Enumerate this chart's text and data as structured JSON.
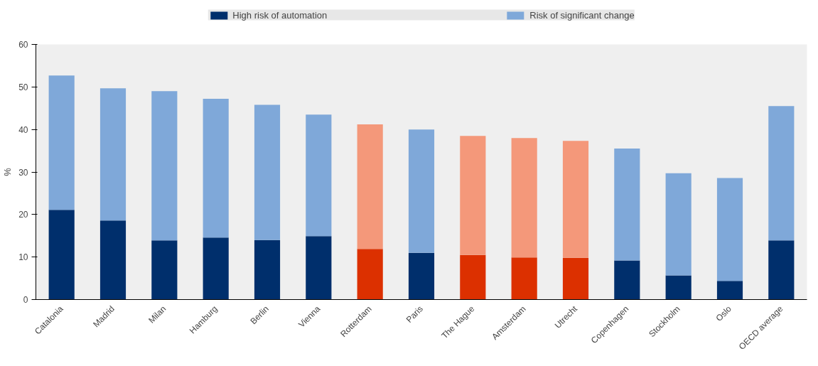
{
  "chart_data": {
    "type": "bar",
    "stacked": true,
    "ylabel": "%",
    "categories": [
      "Catalonia",
      "Madrid",
      "Milan",
      "Hamburg",
      "Berlin",
      "Vienna",
      "Rotterdam",
      "Paris",
      "The Hague",
      "Amsterdam",
      "Utrecht",
      "Copenhagen",
      "Stockholm",
      "Oslo",
      "OECD average"
    ],
    "series": [
      {
        "name": "High risk of automation",
        "color": "#002f6c",
        "colors": [
          "#002f6c",
          "#002f6c",
          "#002f6c",
          "#002f6c",
          "#002f6c",
          "#002f6c",
          "#dc3000",
          "#002f6c",
          "#dc3000",
          "#dc3000",
          "#dc3000",
          "#002f6c",
          "#002f6c",
          "#002f6c",
          "#002f6c"
        ],
        "values": [
          21.1,
          18.6,
          13.9,
          14.6,
          14.0,
          14.9,
          11.9,
          11.0,
          10.5,
          9.9,
          9.8,
          9.2,
          5.7,
          4.4,
          13.9
        ]
      },
      {
        "name": "Risk of significant change",
        "color": "#7fa8d9",
        "colors": [
          "#7fa8d9",
          "#7fa8d9",
          "#7fa8d9",
          "#7fa8d9",
          "#7fa8d9",
          "#7fa8d9",
          "#f4987a",
          "#7fa8d9",
          "#f4987a",
          "#f4987a",
          "#f4987a",
          "#7fa8d9",
          "#7fa8d9",
          "#7fa8d9",
          "#7fa8d9"
        ],
        "values": [
          31.6,
          31.1,
          35.1,
          32.6,
          31.8,
          28.6,
          29.3,
          29.0,
          28.0,
          28.1,
          27.5,
          26.3,
          24.0,
          24.2,
          31.6
        ]
      }
    ],
    "ylim": [
      0,
      60
    ],
    "yticks": [
      0,
      10,
      20,
      30,
      40,
      50,
      60
    ],
    "grid": false,
    "legend": "top"
  }
}
